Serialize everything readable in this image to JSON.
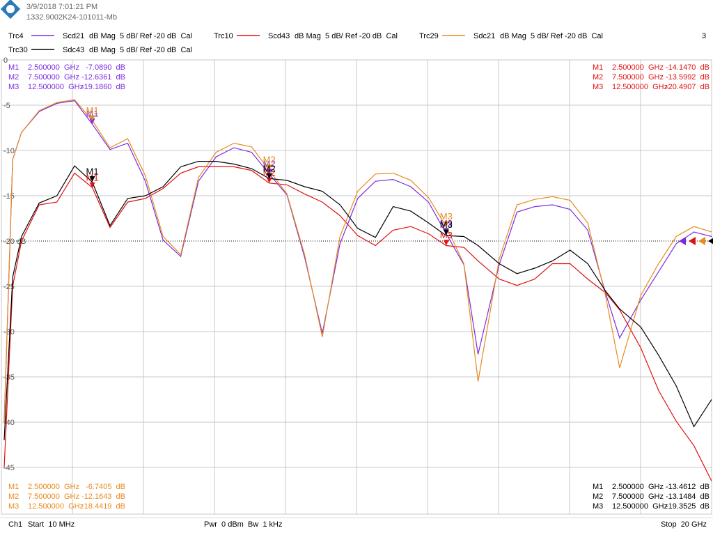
{
  "header": {
    "timestamp": "3/9/2018 7:01:21 PM",
    "device_id": "1332.9002K24-101011-Mb",
    "window_number": "3"
  },
  "footer": {
    "channel": "Ch1",
    "start": "Start  10 MHz",
    "power": "Pwr  0 dBm  Bw  1 kHz",
    "stop": "Stop  20 GHz"
  },
  "chart_data": {
    "type": "line",
    "xlim": [
      0.01,
      20
    ],
    "ylim": [
      -50,
      0
    ],
    "yticks": [
      0,
      -5,
      -10,
      -15,
      {
        "value": -20,
        "label": "-20 dB"
      },
      -25,
      -30,
      -35,
      -40,
      -45
    ],
    "ref_level": -20,
    "grid": true,
    "x": [
      0.01,
      0.25,
      0.5,
      1,
      1.5,
      2,
      2.5,
      3,
      3.5,
      4,
      4.5,
      5,
      5.5,
      6,
      6.5,
      7,
      7.5,
      8,
      8.5,
      9,
      9.5,
      10,
      10.5,
      11,
      11.5,
      12,
      12.5,
      13,
      13.4,
      14,
      14.5,
      15,
      15.5,
      16,
      16.5,
      17,
      17.4,
      18,
      18.5,
      19,
      19.5,
      20
    ],
    "series": [
      {
        "trace": "Trc4",
        "name": "Scd21",
        "settings": "dB Mag  5 dB/ Ref -20 dB  Cal",
        "color": "#7b2be0",
        "marker_corner": "top-left",
        "values": [
          -40,
          -11,
          -8,
          -5.7,
          -4.8,
          -4.5,
          -7.1,
          -9.9,
          -9.2,
          -13.4,
          -19.9,
          -21.7,
          -13.4,
          -10.7,
          -9.7,
          -10.2,
          -12.6,
          -14.9,
          -21.8,
          -30.2,
          -20.3,
          -15.3,
          -13.4,
          -13.2,
          -14,
          -15.7,
          -19.2,
          -22.6,
          -32.5,
          -22.6,
          -16.8,
          -16.2,
          -16,
          -16.5,
          -18.8,
          -25.7,
          -30.7,
          -26.5,
          -23.4,
          -20.3,
          -19,
          -19.5
        ],
        "markers": [
          {
            "label": "M1",
            "x": 2.5,
            "x_label": "2.500000  GHz",
            "value": -7.089,
            "value_label": "-7.0890  dB"
          },
          {
            "label": "M2",
            "x": 7.5,
            "x_label": "7.500000  GHz",
            "value": -12.6361,
            "value_label": "-12.6361  dB"
          },
          {
            "label": "M3",
            "x": 12.5,
            "x_label": "12.500000  GHz",
            "value": -19.186,
            "value_label": "-19.1860  dB"
          }
        ]
      },
      {
        "trace": "Trc10",
        "name": "Scd43",
        "settings": "dB Mag  5 dB/ Ref -20 dB  Cal",
        "color": "#e01010",
        "marker_corner": "top-right",
        "values": [
          -45,
          -25,
          -20,
          -16,
          -15.7,
          -12.5,
          -14.1,
          -18.5,
          -15.7,
          -15.3,
          -14.2,
          -12.5,
          -11.8,
          -11.8,
          -11.8,
          -12.2,
          -13.6,
          -13.8,
          -14.8,
          -15.7,
          -17.2,
          -19.4,
          -20.5,
          -18.8,
          -18.4,
          -19.2,
          -20.5,
          -20.7,
          -22.2,
          -24.2,
          -24.9,
          -24.2,
          -22.5,
          -22.5,
          -24.2,
          -25.7,
          -27.6,
          -31.8,
          -36.5,
          -39.9,
          -42.6,
          -46.5
        ],
        "markers": [
          {
            "label": "M1",
            "x": 2.5,
            "x_label": "2.500000  GHz",
            "value": -14.147,
            "value_label": "-14.1470  dB"
          },
          {
            "label": "M2",
            "x": 7.5,
            "x_label": "7.500000  GHz",
            "value": -13.5992,
            "value_label": "-13.5992  dB"
          },
          {
            "label": "M3",
            "x": 12.5,
            "x_label": "12.500000  GHz",
            "value": -20.4907,
            "value_label": "-20.4907  dB"
          }
        ]
      },
      {
        "trace": "Trc29",
        "name": "Sdc21",
        "settings": "dB Mag  5 dB/ Ref -20 dB  Cal",
        "color": "#e88a1c",
        "marker_corner": "bottom-left",
        "values": [
          -40,
          -11,
          -8,
          -5.6,
          -4.7,
          -4.4,
          -6.7,
          -9.7,
          -8.7,
          -12.8,
          -19.5,
          -21.5,
          -13,
          -10.2,
          -9.2,
          -9.6,
          -12.2,
          -14.8,
          -21.5,
          -30.6,
          -19.5,
          -14.5,
          -12.6,
          -12.5,
          -13.3,
          -15.2,
          -18.4,
          -22.5,
          -35.5,
          -22,
          -16,
          -15.4,
          -15.1,
          -15.5,
          -18,
          -26,
          -34,
          -26,
          -22.5,
          -19.5,
          -18.4,
          -19
        ],
        "markers": [
          {
            "label": "M1",
            "x": 2.5,
            "x_label": "2.500000  GHz",
            "value": -6.7405,
            "value_label": "-6.7405  dB"
          },
          {
            "label": "M2",
            "x": 7.5,
            "x_label": "7.500000  GHz",
            "value": -12.1643,
            "value_label": "-12.1643  dB"
          },
          {
            "label": "M3",
            "x": 12.5,
            "x_label": "12.500000  GHz",
            "value": -18.4419,
            "value_label": "-18.4419  dB"
          }
        ]
      },
      {
        "trace": "Trc30",
        "name": "Sdc43",
        "settings": "dB Mag  5 dB/ Ref -20 dB  Cal",
        "color": "#000000",
        "marker_corner": "bottom-right",
        "values": [
          -42,
          -24,
          -19.5,
          -15.8,
          -15,
          -11.7,
          -13.5,
          -18.3,
          -15.3,
          -15,
          -14,
          -11.8,
          -11.2,
          -11.2,
          -11.5,
          -12,
          -13.1,
          -13.3,
          -14,
          -14.5,
          -16,
          -18.6,
          -19.6,
          -16.2,
          -16.7,
          -18,
          -19.4,
          -19.5,
          -20.5,
          -22.5,
          -23.6,
          -23,
          -22.2,
          -21,
          -22.5,
          -25.5,
          -27.5,
          -29.5,
          -32.6,
          -36,
          -40.5,
          -37.5
        ],
        "markers": [
          {
            "label": "M1",
            "x": 2.5,
            "x_label": "2.500000  GHz",
            "value": -13.4612,
            "value_label": "-13.4612  dB"
          },
          {
            "label": "M2",
            "x": 7.5,
            "x_label": "7.500000  GHz",
            "value": -13.1484,
            "value_label": "-13.1484  dB"
          },
          {
            "label": "M3",
            "x": 12.5,
            "x_label": "12.500000  GHz",
            "value": -19.3525,
            "value_label": "-19.3525  dB"
          }
        ]
      }
    ]
  }
}
